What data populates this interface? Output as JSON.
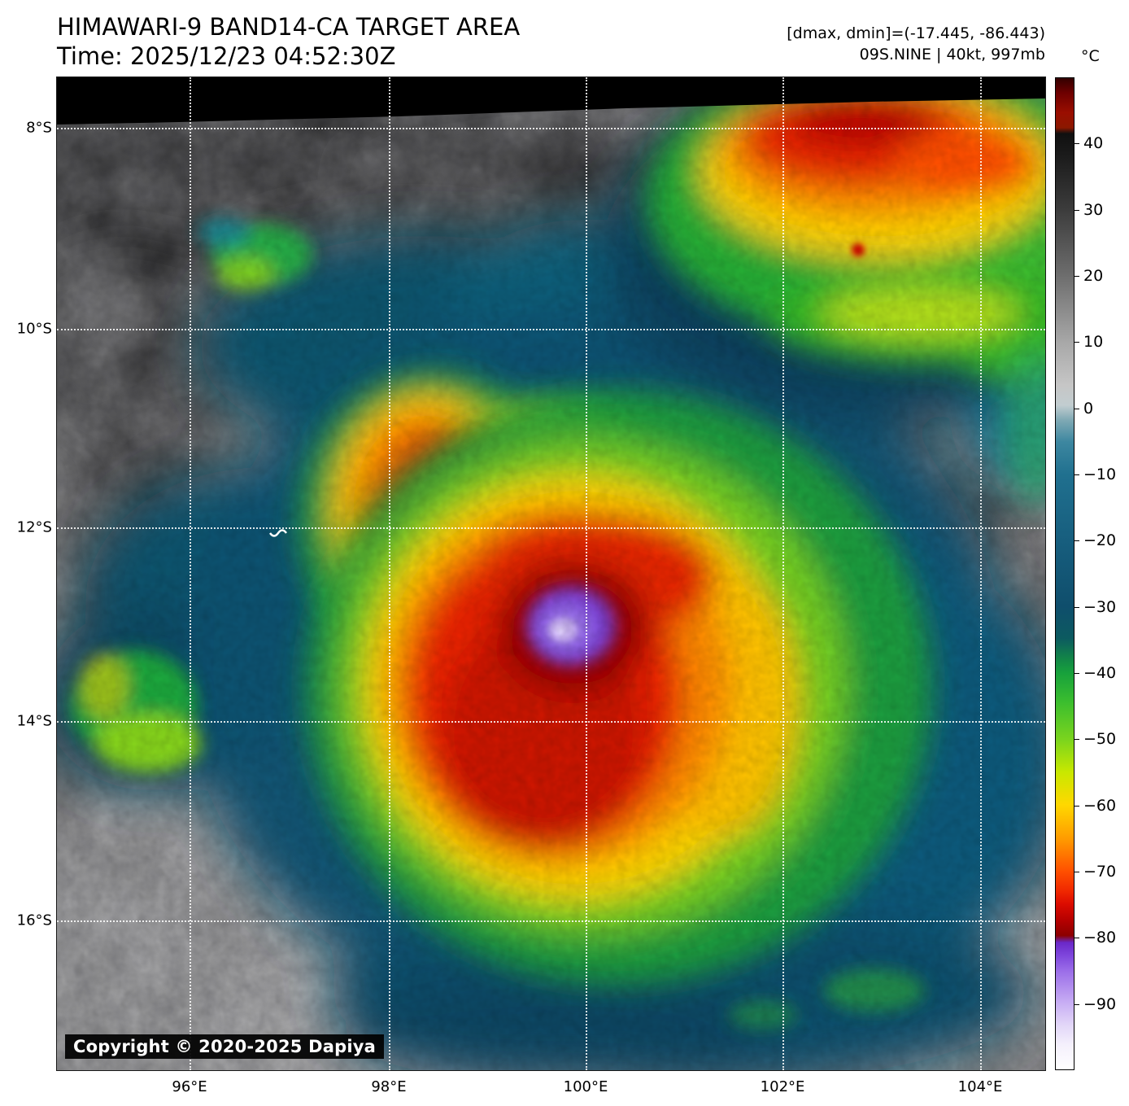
{
  "header": {
    "title": "HIMAWARI-9 BAND14-CA TARGET AREA",
    "time": "Time: 2025/12/23 04:52:30Z",
    "dmax_dmin": "[dmax, dmin]=(-17.445, -86.443)",
    "storm_info": "09S.NINE | 40kt, 997mb"
  },
  "axes": {
    "lat_labels": [
      "8°S",
      "10°S",
      "12°S",
      "14°S",
      "16°S"
    ],
    "lon_labels": [
      "96°E",
      "98°E",
      "100°E",
      "102°E",
      "104°E"
    ]
  },
  "colorbar": {
    "unit": "°C",
    "ticks": [
      40,
      30,
      20,
      10,
      0,
      -10,
      -20,
      -30,
      -40,
      -50,
      -60,
      -70,
      -80,
      -90
    ],
    "gradient": [
      {
        "at": 0,
        "color": "#330000"
      },
      {
        "at": 1.5,
        "color": "#6e0000"
      },
      {
        "at": 3.5,
        "color": "#9a0e00"
      },
      {
        "at": 5,
        "color": "#8c1800"
      },
      {
        "at": 5.6,
        "color": "#101010"
      },
      {
        "at": 8,
        "color": "#1c1c1c"
      },
      {
        "at": 13.3,
        "color": "#3c3c3c"
      },
      {
        "at": 20,
        "color": "#6e6e6e"
      },
      {
        "at": 26.7,
        "color": "#a8a8a8"
      },
      {
        "at": 31,
        "color": "#c6c6c6"
      },
      {
        "at": 33,
        "color": "#c2cdd0"
      },
      {
        "at": 34.5,
        "color": "#7fa9b4"
      },
      {
        "at": 36.7,
        "color": "#3d87a0"
      },
      {
        "at": 40,
        "color": "#20708f"
      },
      {
        "at": 46.7,
        "color": "#175e7e"
      },
      {
        "at": 53.3,
        "color": "#0f4e6c"
      },
      {
        "at": 56.5,
        "color": "#0c5a60"
      },
      {
        "at": 58.5,
        "color": "#128448"
      },
      {
        "at": 60,
        "color": "#17a13c"
      },
      {
        "at": 63,
        "color": "#3cbe2e"
      },
      {
        "at": 66.7,
        "color": "#7ad41e"
      },
      {
        "at": 70,
        "color": "#c8e800"
      },
      {
        "at": 73.3,
        "color": "#ffd800"
      },
      {
        "at": 76.7,
        "color": "#ff9c00"
      },
      {
        "at": 80,
        "color": "#ff5000"
      },
      {
        "at": 82,
        "color": "#f02800"
      },
      {
        "at": 83.3,
        "color": "#dc0c00"
      },
      {
        "at": 85,
        "color": "#b40000"
      },
      {
        "at": 86.5,
        "color": "#8c0000"
      },
      {
        "at": 87.2,
        "color": "#6a28c8"
      },
      {
        "at": 88.5,
        "color": "#7e46dc"
      },
      {
        "at": 90,
        "color": "#9a6ce8"
      },
      {
        "at": 93.3,
        "color": "#c8aef4"
      },
      {
        "at": 95.5,
        "color": "#e2d6f8"
      },
      {
        "at": 97.5,
        "color": "#f4f0fc"
      },
      {
        "at": 100,
        "color": "#ffffff"
      }
    ]
  },
  "copyright": "Copyright © 2020-2025 Dapiya"
}
